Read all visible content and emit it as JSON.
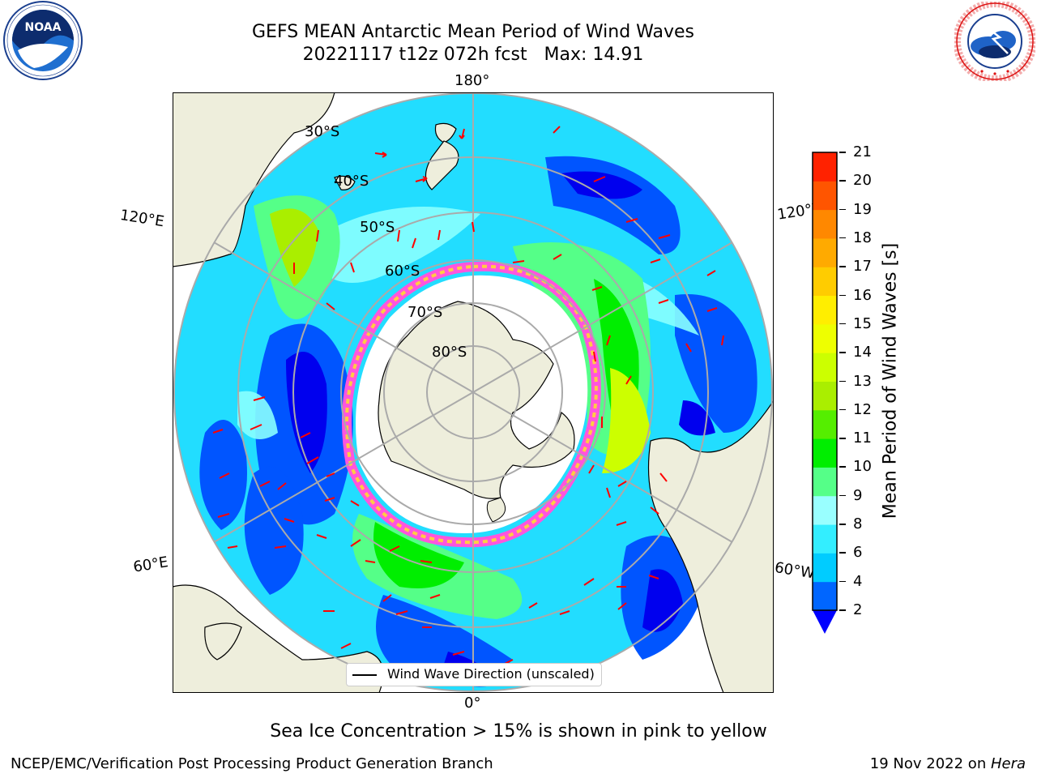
{
  "header": {
    "title_line1": "GEFS MEAN Antarctic Mean Period of Wind Waves",
    "title_line2": "20221117 t12z 072h fcst   Max: 14.91"
  },
  "logos": {
    "left": {
      "name": "NOAA",
      "text": "NOAA",
      "ring_text": "NATIONAL OCEANIC AND ATMOSPHERIC ADMINISTRATION · U.S. DEPARTMENT OF COMMERCE"
    },
    "right": {
      "name": "National Weather Service",
      "ring_text": "NATIONAL WEATHER SERVICE"
    }
  },
  "map": {
    "projection": "south polar stereographic",
    "longitude_labels": {
      "top": "180°",
      "bottom": "0°",
      "left_upper": "120°E",
      "right_upper": "120°W",
      "left_lower": "60°E",
      "right_lower": "60°W"
    },
    "latitude_labels": [
      "30°S",
      "40°S",
      "50°S",
      "60°S",
      "70°S",
      "80°S"
    ],
    "legend_label": "Wind Wave Direction (unscaled)"
  },
  "colorbar": {
    "title": "Mean Period of Wind Waves [s]",
    "ticks": [
      "2",
      "4",
      "6",
      "8",
      "9",
      "10",
      "11",
      "12",
      "13",
      "14",
      "15",
      "16",
      "17",
      "18",
      "19",
      "20",
      "21"
    ],
    "levels": [
      2,
      4,
      6,
      8,
      9,
      10,
      11,
      12,
      13,
      14,
      15,
      16,
      17,
      18,
      19,
      20,
      21
    ],
    "colors": [
      "#0066ff",
      "#00ccff",
      "#33eeff",
      "#99ffff",
      "#55ff88",
      "#00ee00",
      "#55ee00",
      "#aaee00",
      "#ccff00",
      "#eeff00",
      "#ffee00",
      "#ffcc00",
      "#ffaa00",
      "#ff8800",
      "#ff5500",
      "#ff2200"
    ],
    "under_color": "#0000ff",
    "extend": "min"
  },
  "notes": {
    "sea_ice": "Sea Ice Concentration > 15% is shown in pink to yellow"
  },
  "footer": {
    "left": "NCEP/EMC/Verification Post Processing Product Generation Branch",
    "right_prefix": "19 Nov 2022 on ",
    "right_italic": "Hera"
  }
}
